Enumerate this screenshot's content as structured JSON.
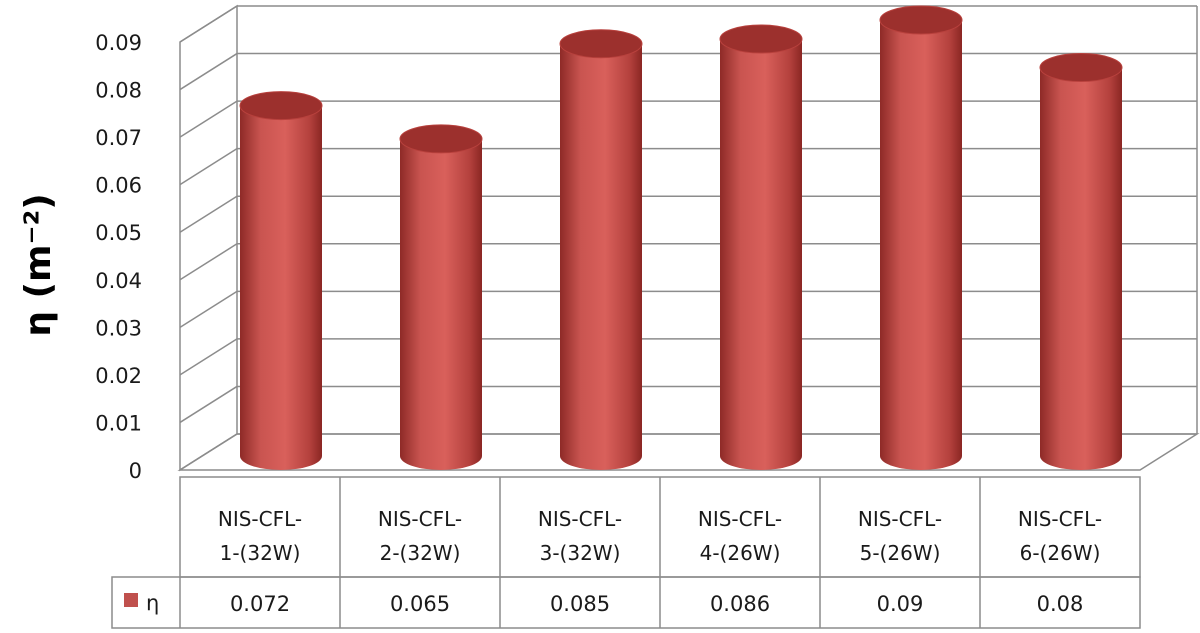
{
  "chart_data": {
    "type": "bar",
    "style": "3d-cylinder",
    "ylabel": "η (m⁻²)",
    "ylim": [
      0,
      0.09
    ],
    "yticks": [
      "0",
      "0.01",
      "0.02",
      "0.03",
      "0.04",
      "0.05",
      "0.06",
      "0.07",
      "0.08",
      "0.09"
    ],
    "categories": [
      [
        "NIS-CFL-",
        "1-(32W)"
      ],
      [
        "NIS-CFL-",
        "2-(32W)"
      ],
      [
        "NIS-CFL-",
        "3-(32W)"
      ],
      [
        "NIS-CFL-",
        "4-(26W)"
      ],
      [
        "NIS-CFL-",
        "5-(26W)"
      ],
      [
        "NIS-CFL-",
        "6-(26W)"
      ]
    ],
    "series": [
      {
        "name": "η",
        "color": "#c0504d",
        "values": [
          0.072,
          0.065,
          0.085,
          0.086,
          0.09,
          0.08
        ],
        "value_labels": [
          "0.072",
          "0.065",
          "0.085",
          "0.086",
          "0.09",
          "0.08"
        ]
      }
    ],
    "grid": true,
    "legend": "data-table-left"
  }
}
